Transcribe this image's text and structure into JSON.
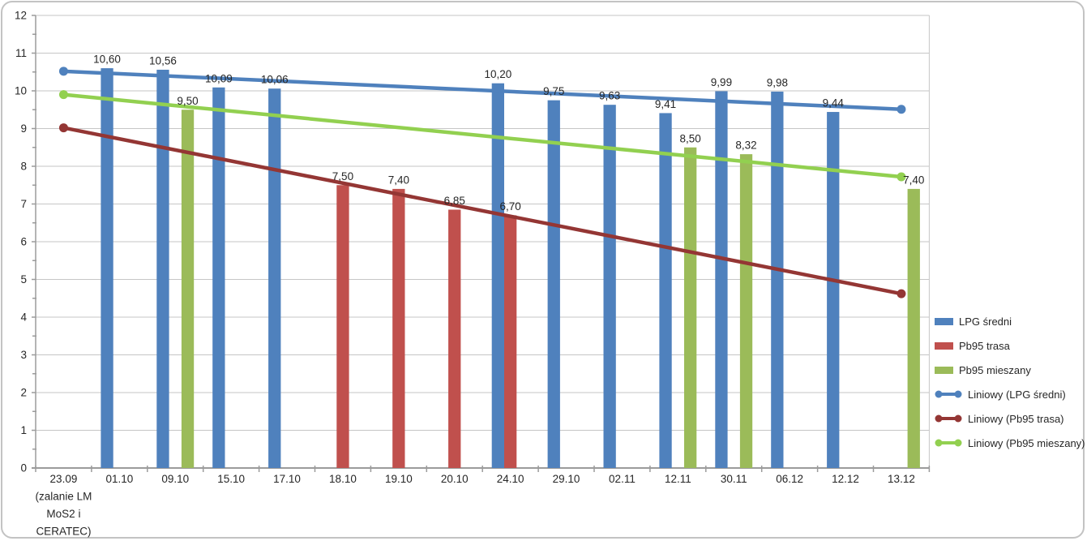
{
  "chart_data": {
    "type": "bar",
    "title": "",
    "xlabel": "",
    "ylabel": "",
    "ylim": [
      0,
      12
    ],
    "yticks": [
      0,
      1,
      2,
      3,
      4,
      5,
      6,
      7,
      8,
      9,
      10,
      11,
      12
    ],
    "grid": true,
    "legend_position": "right",
    "decimal_separator": ",",
    "value_label_decimals": 2,
    "categories": [
      "23.09 (zalanie LM MoS2 i CERATEC)",
      "01.10",
      "09.10",
      "15.10",
      "17.10",
      "18.10",
      "19.10",
      "20.10",
      "24.10",
      "29.10",
      "02.11",
      "12.11",
      "30.11",
      "06.12",
      "12.12",
      "13.12"
    ],
    "category_label_lines": [
      [
        "23.09",
        "(zalanie LM",
        "MoS2 i",
        "CERATEC)"
      ],
      [
        "01.10"
      ],
      [
        "09.10"
      ],
      [
        "15.10"
      ],
      [
        "17.10"
      ],
      [
        "18.10"
      ],
      [
        "19.10"
      ],
      [
        "20.10"
      ],
      [
        "24.10"
      ],
      [
        "29.10"
      ],
      [
        "02.11"
      ],
      [
        "12.11"
      ],
      [
        "30.11"
      ],
      [
        "06.12"
      ],
      [
        "12.12"
      ],
      [
        "13.12"
      ]
    ],
    "series": [
      {
        "name": "LPG średni",
        "color": "#4F81BD",
        "values": [
          null,
          10.6,
          10.56,
          10.09,
          10.06,
          null,
          null,
          null,
          10.2,
          9.75,
          9.63,
          9.41,
          9.99,
          9.98,
          9.44,
          null
        ]
      },
      {
        "name": "Pb95 trasa",
        "color": "#C0504D",
        "values": [
          null,
          null,
          null,
          null,
          null,
          7.5,
          7.4,
          6.85,
          6.7,
          null,
          null,
          null,
          null,
          null,
          null,
          null
        ]
      },
      {
        "name": "Pb95 mieszany",
        "color": "#9BBB59",
        "values": [
          null,
          null,
          9.5,
          null,
          null,
          null,
          null,
          null,
          null,
          null,
          null,
          8.5,
          8.32,
          null,
          null,
          7.4
        ]
      }
    ],
    "trendlines": [
      {
        "name": "Liniowy (LPG średni)",
        "color": "#4F81BD",
        "start_value": 10.52,
        "end_value": 9.51
      },
      {
        "name": "Liniowy (Pb95 trasa)",
        "color": "#943634",
        "start_value": 9.02,
        "end_value": 4.62
      },
      {
        "name": "Liniowy (Pb95 mieszany)",
        "color": "#92D050",
        "start_value": 9.9,
        "end_value": 7.72
      }
    ],
    "colors": {
      "gridline": "#C6C6C6",
      "axis": "#9B9B9B",
      "text": "#262626"
    }
  },
  "legend": {
    "items": [
      {
        "label": "LPG średni",
        "swatch": "bar",
        "color": "#4F81BD"
      },
      {
        "label": "Pb95 trasa",
        "swatch": "bar",
        "color": "#C0504D"
      },
      {
        "label": "Pb95 mieszany",
        "swatch": "bar",
        "color": "#9BBB59"
      },
      {
        "label": "Liniowy (LPG średni)",
        "swatch": "line",
        "color": "#4F81BD"
      },
      {
        "label": "Liniowy (Pb95 trasa)",
        "swatch": "line",
        "color": "#943634"
      },
      {
        "label": "Liniowy (Pb95 mieszany)",
        "swatch": "line",
        "color": "#92D050"
      }
    ]
  }
}
